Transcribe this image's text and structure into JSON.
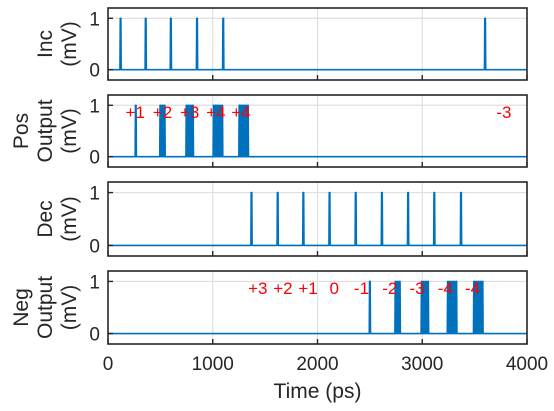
{
  "colors": {
    "trace": "#0072BD",
    "annotation": "#FF0000",
    "axis": "#262626",
    "grid": "#DFDFDF"
  },
  "chart_data": [
    {
      "type": "line",
      "ylabel": [
        "Inc",
        "(mV)"
      ],
      "xlim": [
        0,
        4000
      ],
      "ylim": [
        -0.2,
        1.2
      ],
      "yticks": [
        0,
        1
      ],
      "grid": true,
      "pulse_times": [
        120,
        360,
        600,
        850,
        1100,
        3600
      ],
      "pulse_width": 12,
      "annotations": []
    },
    {
      "type": "line",
      "ylabel": [
        "Pos",
        "Output",
        "(mV)"
      ],
      "xlim": [
        0,
        4000
      ],
      "ylim": [
        -0.2,
        1.2
      ],
      "yticks": [
        0,
        1
      ],
      "grid": true,
      "pulse_times": [
        265,
        500,
        520,
        540,
        750,
        770,
        790,
        810,
        1010,
        1030,
        1050,
        1070,
        1090,
        1255,
        1275,
        1295,
        1315,
        1335
      ],
      "pulse_width": 12,
      "annotations": [
        {
          "text": "+1",
          "x": 260
        },
        {
          "text": "+2",
          "x": 520
        },
        {
          "text": "+3",
          "x": 780
        },
        {
          "text": "+4",
          "x": 1030
        },
        {
          "text": "+4",
          "x": 1270
        },
        {
          "text": "-3",
          "x": 3780
        }
      ]
    },
    {
      "type": "line",
      "ylabel": [
        "Dec",
        "(mV)"
      ],
      "xlim": [
        0,
        4000
      ],
      "ylim": [
        -0.2,
        1.2
      ],
      "yticks": [
        0,
        1
      ],
      "grid": true,
      "pulse_times": [
        1370,
        1620,
        1865,
        2115,
        2365,
        2615,
        2865,
        3115,
        3370
      ],
      "pulse_width": 12,
      "annotations": []
    },
    {
      "type": "line",
      "ylabel": [
        "Neg",
        "Output",
        "(mV)"
      ],
      "xlim": [
        0,
        4000
      ],
      "ylim": [
        -0.2,
        1.2
      ],
      "yticks": [
        0,
        1
      ],
      "xticks": [
        0,
        1000,
        2000,
        3000,
        4000
      ],
      "xlabel": "Time (ps)",
      "grid": true,
      "pulse_times": [
        2500,
        2745,
        2765,
        2785,
        2995,
        3015,
        3035,
        3055,
        3245,
        3265,
        3285,
        3305,
        3325,
        3495,
        3515,
        3535,
        3555,
        3575
      ],
      "pulse_width": 12,
      "annotations": [
        {
          "text": "+3",
          "x": 1430
        },
        {
          "text": "+2",
          "x": 1670
        },
        {
          "text": "+1",
          "x": 1910
        },
        {
          "text": "0",
          "x": 2160
        },
        {
          "text": "-1",
          "x": 2420
        },
        {
          "text": "-2",
          "x": 2690
        },
        {
          "text": "-3",
          "x": 2950
        },
        {
          "text": "-4",
          "x": 3220
        },
        {
          "text": "-4",
          "x": 3480
        }
      ]
    }
  ]
}
